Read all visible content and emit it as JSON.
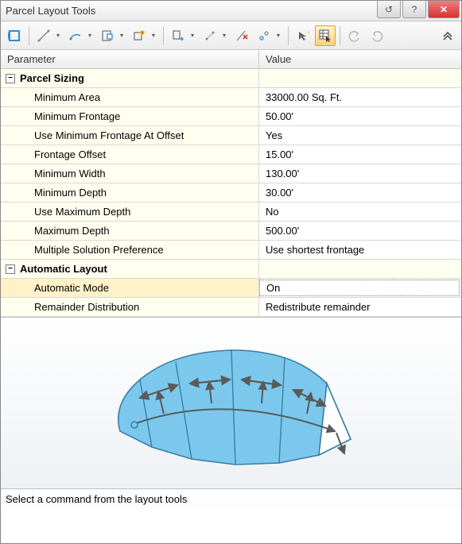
{
  "window": {
    "title": "Parcel Layout Tools"
  },
  "titlebar_buttons": {
    "reset": "↺",
    "help": "?",
    "close": "✕"
  },
  "grid": {
    "header_param": "Parameter",
    "header_value": "Value",
    "section_sizing": "Parcel Sizing",
    "section_auto": "Automatic Layout",
    "tree_glyph": "−",
    "rows_sizing": [
      {
        "param": "Minimum Area",
        "value": "33000.00 Sq. Ft."
      },
      {
        "param": "Minimum Frontage",
        "value": "50.00'"
      },
      {
        "param": "Use Minimum Frontage At Offset",
        "value": "Yes"
      },
      {
        "param": "Frontage Offset",
        "value": "15.00'"
      },
      {
        "param": "Minimum Width",
        "value": "130.00'"
      },
      {
        "param": "Minimum Depth",
        "value": "30.00'"
      },
      {
        "param": "Use Maximum Depth",
        "value": "No"
      },
      {
        "param": "Maximum Depth",
        "value": "500.00'"
      },
      {
        "param": "Multiple Solution Preference",
        "value": "Use shortest frontage"
      }
    ],
    "rows_auto": [
      {
        "param": "Automatic Mode",
        "value": "On",
        "selected": true
      },
      {
        "param": "Remainder Distribution",
        "value": "Redistribute remainder"
      }
    ]
  },
  "status": {
    "text": "Select a command from the layout tools"
  },
  "diagram": {
    "fill": "#7cc8ed",
    "stroke": "#3a7da8",
    "arrow": "#5a5a5a",
    "marker": "#7cc8ed",
    "background_top": "#ffffff",
    "background_bottom": "#eef1f4"
  }
}
